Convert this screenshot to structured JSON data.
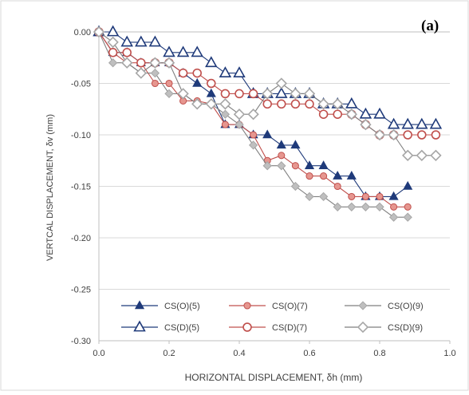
{
  "chart_data": {
    "type": "line",
    "panel_label": "(a)",
    "title": "",
    "xlabel": "HORIZONTAL DISPLACEMENT, δh (mm)",
    "ylabel": "VERTCAL DISPLACEMENT, δv  (mm)",
    "xlim": [
      0,
      1.0
    ],
    "ylim": [
      -0.3,
      0.0
    ],
    "x_ticks": [
      "0.0",
      "0.2",
      "0.4",
      "0.6",
      "0.8",
      "1.0"
    ],
    "y_ticks": [
      "0.00",
      "-0.05",
      "-0.10",
      "-0.15",
      "-0.20",
      "-0.25",
      "-0.30"
    ],
    "grid": "horizontal",
    "legend_position": "bottom-inside",
    "series": [
      {
        "name": "CS(O)(5)",
        "color": "#1F3A7A",
        "marker": "triangle",
        "filled": true,
        "points": [
          [
            0,
            0
          ],
          [
            0.04,
            -0.02
          ],
          [
            0.08,
            -0.02
          ],
          [
            0.12,
            -0.03
          ],
          [
            0.16,
            -0.03
          ],
          [
            0.2,
            -0.03
          ],
          [
            0.24,
            -0.04
          ],
          [
            0.28,
            -0.05
          ],
          [
            0.32,
            -0.06
          ],
          [
            0.36,
            -0.09
          ],
          [
            0.4,
            -0.09
          ],
          [
            0.44,
            -0.1
          ],
          [
            0.48,
            -0.1
          ],
          [
            0.52,
            -0.11
          ],
          [
            0.56,
            -0.11
          ],
          [
            0.6,
            -0.13
          ],
          [
            0.64,
            -0.13
          ],
          [
            0.68,
            -0.14
          ],
          [
            0.72,
            -0.14
          ],
          [
            0.76,
            -0.16
          ],
          [
            0.8,
            -0.16
          ],
          [
            0.84,
            -0.16
          ],
          [
            0.88,
            -0.15
          ]
        ]
      },
      {
        "name": "CS(O)(7)",
        "color": "#C0504D",
        "marker": "circle",
        "filled": true,
        "points": [
          [
            0,
            0
          ],
          [
            0.04,
            -0.02
          ],
          [
            0.08,
            -0.03
          ],
          [
            0.12,
            -0.03
          ],
          [
            0.16,
            -0.05
          ],
          [
            0.2,
            -0.05
          ],
          [
            0.24,
            -0.067
          ],
          [
            0.28,
            -0.067
          ],
          [
            0.32,
            -0.07
          ],
          [
            0.36,
            -0.09
          ],
          [
            0.4,
            -0.09
          ],
          [
            0.44,
            -0.1
          ],
          [
            0.48,
            -0.125
          ],
          [
            0.52,
            -0.12
          ],
          [
            0.56,
            -0.13
          ],
          [
            0.6,
            -0.14
          ],
          [
            0.64,
            -0.14
          ],
          [
            0.68,
            -0.15
          ],
          [
            0.72,
            -0.16
          ],
          [
            0.76,
            -0.16
          ],
          [
            0.8,
            -0.16
          ],
          [
            0.84,
            -0.17
          ],
          [
            0.88,
            -0.17
          ]
        ]
      },
      {
        "name": "CS(O)(9)",
        "color": "#A6A6A6",
        "marker": "diamond",
        "filled": true,
        "points": [
          [
            0,
            0
          ],
          [
            0.04,
            -0.03
          ],
          [
            0.08,
            -0.03
          ],
          [
            0.12,
            -0.04
          ],
          [
            0.16,
            -0.04
          ],
          [
            0.2,
            -0.06
          ],
          [
            0.24,
            -0.06
          ],
          [
            0.28,
            -0.07
          ],
          [
            0.32,
            -0.07
          ],
          [
            0.36,
            -0.08
          ],
          [
            0.4,
            -0.09
          ],
          [
            0.44,
            -0.11
          ],
          [
            0.48,
            -0.13
          ],
          [
            0.52,
            -0.13
          ],
          [
            0.56,
            -0.15
          ],
          [
            0.6,
            -0.16
          ],
          [
            0.64,
            -0.16
          ],
          [
            0.68,
            -0.17
          ],
          [
            0.72,
            -0.17
          ],
          [
            0.76,
            -0.17
          ],
          [
            0.8,
            -0.17
          ],
          [
            0.84,
            -0.18
          ],
          [
            0.88,
            -0.18
          ]
        ]
      },
      {
        "name": "CS(D)(5)",
        "color": "#1F3A7A",
        "marker": "triangle",
        "filled": false,
        "points": [
          [
            0,
            0
          ],
          [
            0.04,
            0
          ],
          [
            0.08,
            -0.01
          ],
          [
            0.12,
            -0.01
          ],
          [
            0.16,
            -0.01
          ],
          [
            0.2,
            -0.02
          ],
          [
            0.24,
            -0.02
          ],
          [
            0.28,
            -0.02
          ],
          [
            0.32,
            -0.03
          ],
          [
            0.36,
            -0.04
          ],
          [
            0.4,
            -0.04
          ],
          [
            0.44,
            -0.06
          ],
          [
            0.48,
            -0.06
          ],
          [
            0.52,
            -0.06
          ],
          [
            0.56,
            -0.06
          ],
          [
            0.6,
            -0.06
          ],
          [
            0.64,
            -0.07
          ],
          [
            0.68,
            -0.07
          ],
          [
            0.72,
            -0.07
          ],
          [
            0.76,
            -0.08
          ],
          [
            0.8,
            -0.08
          ],
          [
            0.84,
            -0.09
          ],
          [
            0.88,
            -0.09
          ],
          [
            0.92,
            -0.09
          ],
          [
            0.96,
            -0.09
          ]
        ]
      },
      {
        "name": "CS(D)(7)",
        "color": "#C0504D",
        "marker": "circle",
        "filled": false,
        "points": [
          [
            0,
            0
          ],
          [
            0.04,
            -0.02
          ],
          [
            0.08,
            -0.02
          ],
          [
            0.12,
            -0.03
          ],
          [
            0.16,
            -0.03
          ],
          [
            0.2,
            -0.03
          ],
          [
            0.24,
            -0.04
          ],
          [
            0.28,
            -0.04
          ],
          [
            0.32,
            -0.05
          ],
          [
            0.36,
            -0.06
          ],
          [
            0.4,
            -0.06
          ],
          [
            0.44,
            -0.06
          ],
          [
            0.48,
            -0.07
          ],
          [
            0.52,
            -0.07
          ],
          [
            0.56,
            -0.07
          ],
          [
            0.6,
            -0.07
          ],
          [
            0.64,
            -0.08
          ],
          [
            0.68,
            -0.08
          ],
          [
            0.72,
            -0.08
          ],
          [
            0.76,
            -0.09
          ],
          [
            0.8,
            -0.1
          ],
          [
            0.84,
            -0.1
          ],
          [
            0.88,
            -0.1
          ],
          [
            0.92,
            -0.1
          ],
          [
            0.96,
            -0.1
          ]
        ]
      },
      {
        "name": "CS(D)(9)",
        "color": "#A6A6A6",
        "marker": "diamond",
        "filled": false,
        "points": [
          [
            0,
            0
          ],
          [
            0.04,
            -0.01
          ],
          [
            0.08,
            -0.03
          ],
          [
            0.12,
            -0.04
          ],
          [
            0.16,
            -0.03
          ],
          [
            0.2,
            -0.03
          ],
          [
            0.24,
            -0.06
          ],
          [
            0.28,
            -0.07
          ],
          [
            0.32,
            -0.07
          ],
          [
            0.36,
            -0.07
          ],
          [
            0.4,
            -0.08
          ],
          [
            0.44,
            -0.08
          ],
          [
            0.48,
            -0.06
          ],
          [
            0.52,
            -0.05
          ],
          [
            0.56,
            -0.06
          ],
          [
            0.6,
            -0.06
          ],
          [
            0.64,
            -0.07
          ],
          [
            0.68,
            -0.07
          ],
          [
            0.72,
            -0.08
          ],
          [
            0.76,
            -0.09
          ],
          [
            0.8,
            -0.1
          ],
          [
            0.84,
            -0.1
          ],
          [
            0.88,
            -0.12
          ],
          [
            0.92,
            -0.12
          ],
          [
            0.96,
            -0.12
          ]
        ]
      }
    ]
  }
}
